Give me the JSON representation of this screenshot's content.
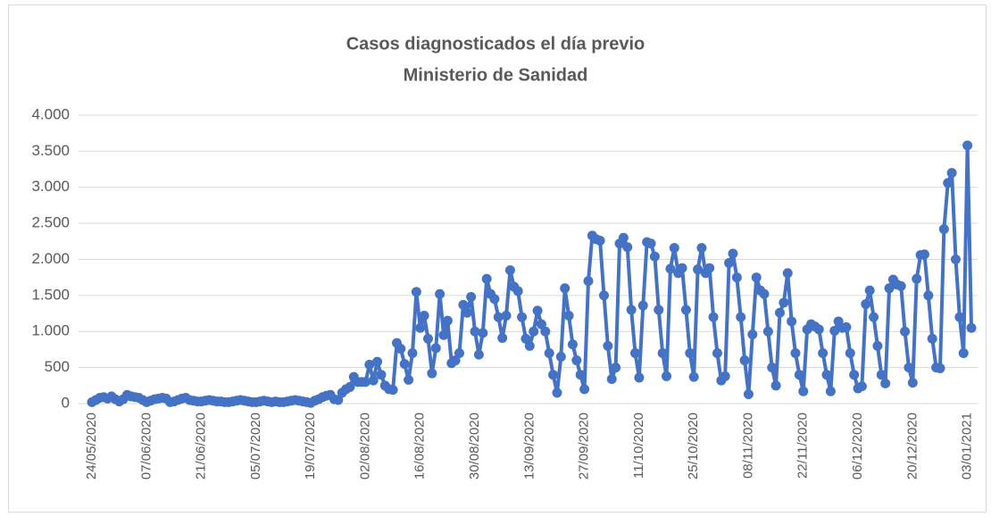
{
  "chart_data": {
    "type": "line",
    "title": "Casos diagnosticados el día previo",
    "subtitle": "Ministerio de Sanidad",
    "categories": [
      "24/05/2020",
      null,
      null,
      null,
      null,
      null,
      null,
      null,
      null,
      null,
      null,
      null,
      null,
      null,
      "07/06/2020",
      null,
      null,
      null,
      null,
      null,
      null,
      null,
      null,
      null,
      null,
      null,
      null,
      null,
      "21/06/2020",
      null,
      null,
      null,
      null,
      null,
      null,
      null,
      null,
      null,
      null,
      null,
      null,
      null,
      "05/07/2020",
      null,
      null,
      null,
      null,
      null,
      null,
      null,
      null,
      null,
      null,
      null,
      null,
      null,
      "19/07/2020",
      null,
      null,
      null,
      null,
      null,
      null,
      null,
      null,
      null,
      null,
      null,
      null,
      null,
      "02/08/2020",
      null,
      null,
      null,
      null,
      null,
      null,
      null,
      null,
      null,
      null,
      null,
      null,
      null,
      "16/08/2020",
      null,
      null,
      null,
      null,
      null,
      null,
      null,
      null,
      null,
      null,
      null,
      null,
      null,
      "30/08/2020",
      null,
      null,
      null,
      null,
      null,
      null,
      null,
      null,
      null,
      null,
      null,
      null,
      null,
      "13/09/2020",
      null,
      null,
      null,
      null,
      null,
      null,
      null,
      null,
      null,
      null,
      null,
      null,
      null,
      "27/09/2020",
      null,
      null,
      null,
      null,
      null,
      null,
      null,
      null,
      null,
      null,
      null,
      null,
      null,
      "11/10/2020",
      null,
      null,
      null,
      null,
      null,
      null,
      null,
      null,
      null,
      null,
      null,
      null,
      null,
      "25/10/2020",
      null,
      null,
      null,
      null,
      null,
      null,
      null,
      null,
      null,
      null,
      null,
      null,
      null,
      "08/11/2020",
      null,
      null,
      null,
      null,
      null,
      null,
      null,
      null,
      null,
      null,
      null,
      null,
      null,
      "22/11/2020",
      null,
      null,
      null,
      null,
      null,
      null,
      null,
      null,
      null,
      null,
      null,
      null,
      null,
      "06/12/2020",
      null,
      null,
      null,
      null,
      null,
      null,
      null,
      null,
      null,
      null,
      null,
      null,
      null,
      "20/12/2020",
      null,
      null,
      null,
      null,
      null,
      null,
      null,
      null,
      null,
      null,
      null,
      null,
      null,
      "03/01/2021",
      null
    ],
    "series": [
      {
        "color": "#4472c4",
        "values": [
          20,
          50,
          80,
          90,
          70,
          100,
          60,
          30,
          60,
          120,
          100,
          90,
          80,
          50,
          20,
          40,
          60,
          70,
          80,
          70,
          20,
          30,
          50,
          70,
          80,
          50,
          40,
          30,
          30,
          40,
          50,
          40,
          30,
          30,
          20,
          20,
          30,
          40,
          50,
          40,
          30,
          20,
          20,
          30,
          40,
          30,
          20,
          30,
          20,
          20,
          30,
          40,
          50,
          40,
          30,
          20,
          10,
          40,
          60,
          90,
          110,
          120,
          60,
          50,
          150,
          200,
          230,
          370,
          300,
          300,
          300,
          540,
          320,
          580,
          400,
          250,
          200,
          190,
          840,
          760,
          550,
          330,
          700,
          1550,
          1050,
          1220,
          900,
          420,
          770,
          1520,
          950,
          1150,
          560,
          600,
          700,
          1370,
          1260,
          1480,
          1000,
          680,
          980,
          1730,
          1520,
          1450,
          1200,
          910,
          1220,
          1850,
          1620,
          1560,
          1200,
          900,
          800,
          1000,
          1290,
          1100,
          1000,
          700,
          400,
          150,
          650,
          1600,
          1220,
          820,
          600,
          400,
          200,
          1700,
          2330,
          2280,
          2260,
          1500,
          800,
          340,
          500,
          2220,
          2300,
          2170,
          1300,
          700,
          360,
          1360,
          2240,
          2220,
          2040,
          1300,
          700,
          380,
          1870,
          2160,
          1810,
          1880,
          1300,
          700,
          370,
          1860,
          2160,
          1810,
          1880,
          1200,
          700,
          320,
          380,
          1950,
          2080,
          1750,
          1200,
          600,
          130,
          960,
          1750,
          1570,
          1520,
          1000,
          500,
          250,
          1260,
          1400,
          1810,
          1140,
          700,
          400,
          170,
          1030,
          1100,
          1070,
          1030,
          700,
          400,
          170,
          1010,
          1140,
          1050,
          1060,
          700,
          400,
          210,
          240,
          1380,
          1570,
          1200,
          800,
          400,
          280,
          1600,
          1720,
          1650,
          1630,
          1000,
          500,
          290,
          1730,
          2060,
          2070,
          1500,
          900,
          500,
          490,
          2420,
          3060,
          3200,
          2000,
          1200,
          700,
          3580,
          1050
        ]
      }
    ],
    "ylim": [
      0,
      4000
    ],
    "yticks": [
      0,
      500,
      {
        "value": 1000,
        "label": "1.000"
      },
      {
        "value": 1500,
        "label": "1.500"
      },
      {
        "value": 2000,
        "label": "2.000"
      },
      {
        "value": 2500,
        "label": "2.500"
      },
      {
        "value": 3000,
        "label": "3.000"
      },
      {
        "value": 3500,
        "label": "3.500"
      },
      {
        "value": 4000,
        "label": "4.000"
      }
    ],
    "grid": true
  }
}
